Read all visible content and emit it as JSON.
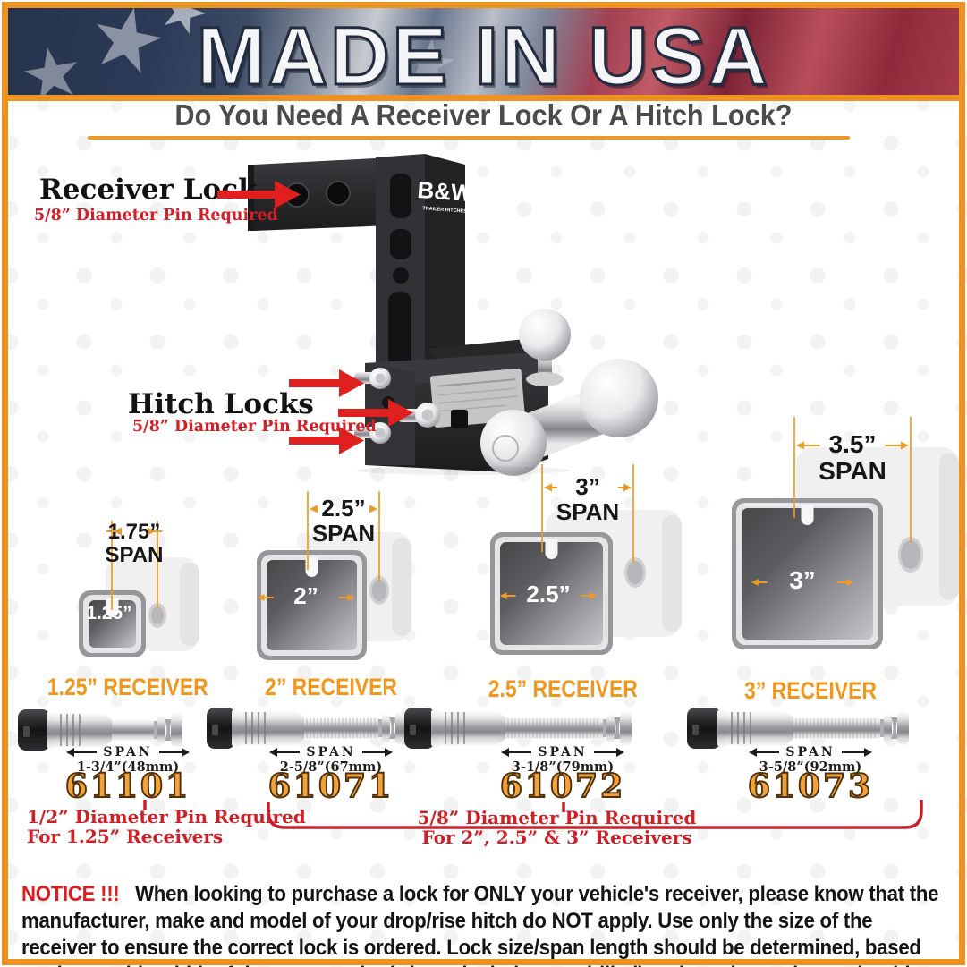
{
  "header": {
    "title": "MADE IN USA"
  },
  "question": {
    "text": "Do You Need A Receiver Lock Or A Hitch Lock?"
  },
  "hitch": {
    "brand": "B&W",
    "brand_sub": "TRAILER HITCHES",
    "receiver_lock": {
      "title": "Receiver Lock",
      "subtitle": "5/8” Diameter Pin Required"
    },
    "hitch_locks": {
      "title": "Hitch Locks",
      "subtitle": "5/8” Diameter Pin Required"
    }
  },
  "receivers": [
    {
      "span_value": "1.75”",
      "span_word": "SPAN",
      "opening": "1.25”",
      "label": "1.25” RECEIVER"
    },
    {
      "span_value": "2.5”",
      "span_word": "SPAN",
      "opening": "2”",
      "label": "2” RECEIVER"
    },
    {
      "span_value": "3”",
      "span_word": "SPAN",
      "opening": "2.5”",
      "label": "2.5” RECEIVER"
    },
    {
      "span_value": "3.5”",
      "span_word": "SPAN",
      "opening": "3”",
      "label": "3” RECEIVER"
    }
  ],
  "pins": [
    {
      "span_word": "SPAN",
      "span_length": "1-3/4”(48mm)",
      "part_number": "61101"
    },
    {
      "span_word": "SPAN",
      "span_length": "2-5/8”(67mm)",
      "part_number": "61071"
    },
    {
      "span_word": "SPAN",
      "span_length": "3-1/8”(79mm)",
      "part_number": "61072"
    },
    {
      "span_word": "SPAN",
      "span_length": "3-5/8”(92mm)",
      "part_number": "61073"
    }
  ],
  "notes": {
    "small_pin": {
      "line1": "1/2” Diameter Pin Required",
      "line2": "For 1.25” Receivers"
    },
    "large_pin": {
      "line1": "5/8” Diameter Pin Required",
      "line2": "For 2”, 2.5” & 3” Receivers"
    }
  },
  "notice": {
    "label": "NOTICE !!!",
    "body": "When looking to purchase a lock for ONLY your vehicle's receiver, please know that the manufacturer, make and model of your drop/rise hitch do NOT apply. Use only the size of the receiver to ensure the correct lock is ordered. Lock size/span length should be determined, based on the outside width of the square tube (where the holes are drilled) and a reducer sleeve should NOT play any factor in the size needed for your vehicle."
  },
  "colors": {
    "orange": "#EE9320",
    "label_orange": "#F0971C",
    "part_orange": "#F1A23B",
    "red_text": "#CE2127",
    "arrow_red": "#E01F1F",
    "heading_gray": "#4B4B4E"
  }
}
